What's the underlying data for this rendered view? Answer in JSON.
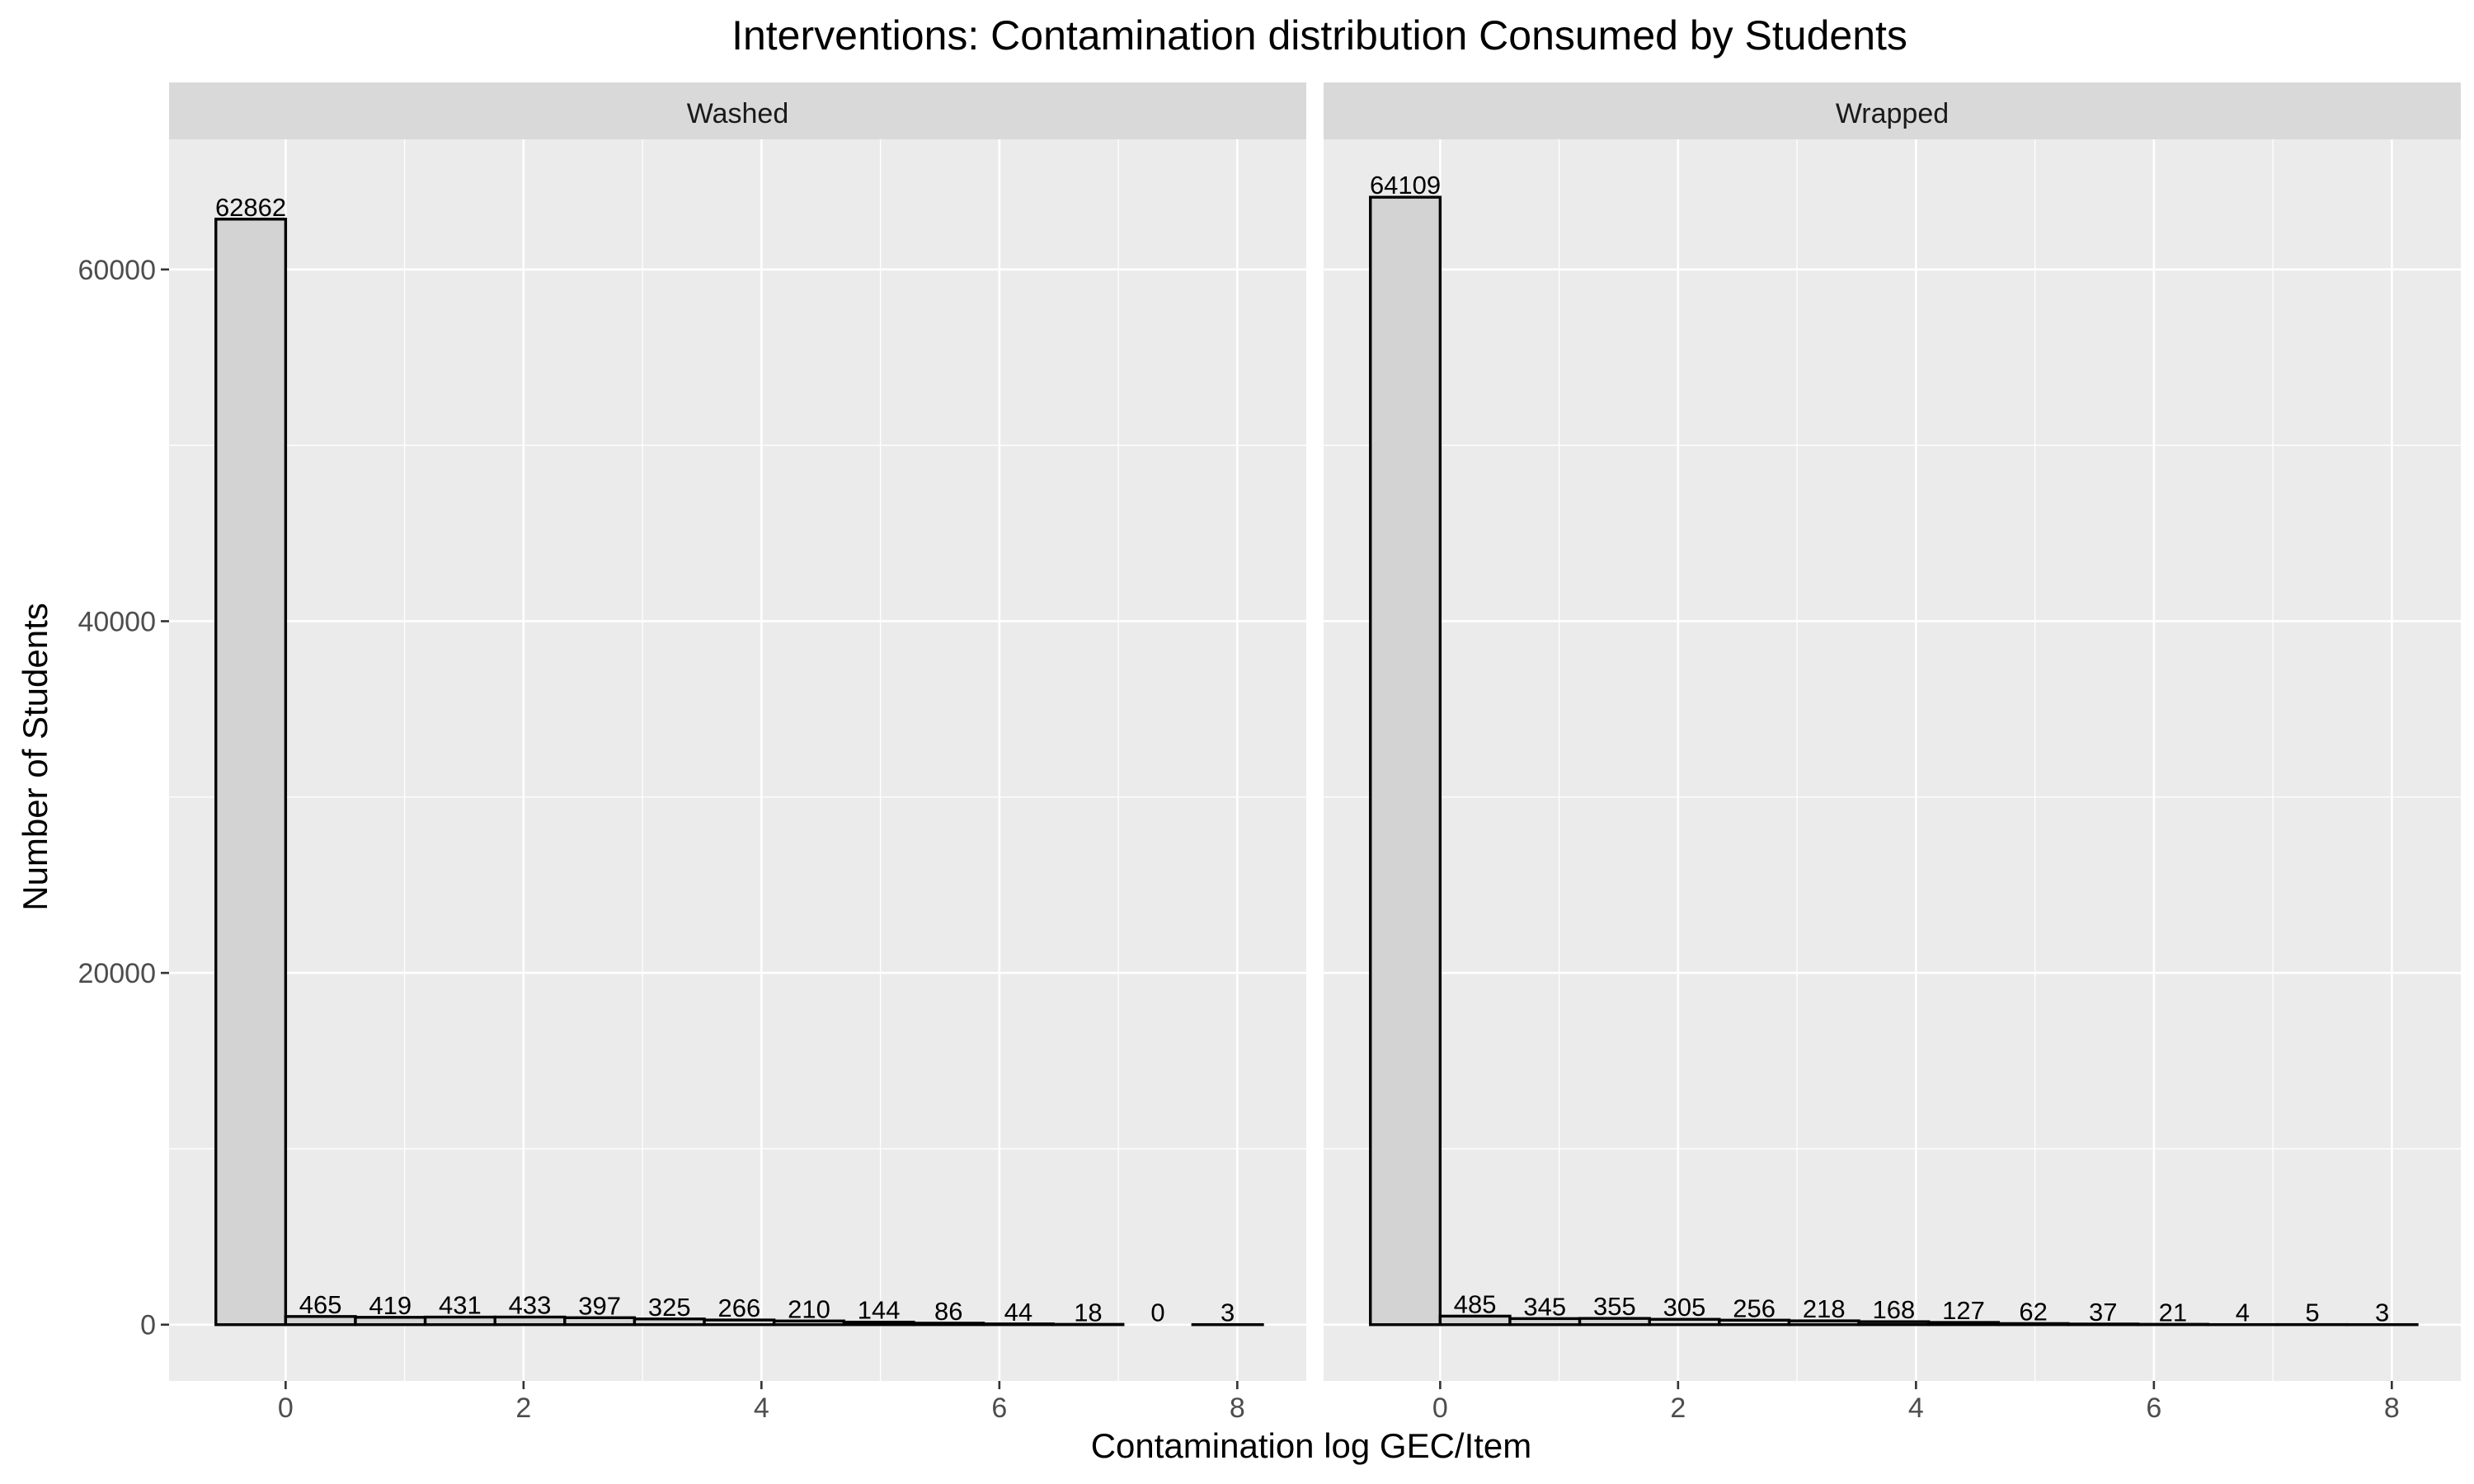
{
  "chart_data": {
    "type": "bar",
    "title": "Interventions: Contamination distribution Consumed by Students",
    "xlabel": "Contamination log GEC/Item",
    "ylabel": "Number of Students",
    "xlim": [
      -0.98,
      8.58
    ],
    "ylim": [
      -3200,
      67400
    ],
    "x_ticks": [
      0,
      2,
      4,
      6,
      8
    ],
    "y_ticks": [
      0,
      20000,
      40000,
      60000
    ],
    "grid": true,
    "bin_width": 0.5866,
    "panels": [
      {
        "name": "Washed",
        "bins": [
          {
            "x": -0.2933,
            "count": 62862
          },
          {
            "x": 0.2933,
            "count": 465
          },
          {
            "x": 0.8799,
            "count": 419
          },
          {
            "x": 1.4665,
            "count": 431
          },
          {
            "x": 2.0531,
            "count": 433
          },
          {
            "x": 2.6397,
            "count": 397
          },
          {
            "x": 3.2263,
            "count": 325
          },
          {
            "x": 3.8129,
            "count": 266
          },
          {
            "x": 4.3995,
            "count": 210
          },
          {
            "x": 4.9861,
            "count": 144
          },
          {
            "x": 5.5727,
            "count": 86
          },
          {
            "x": 6.1593,
            "count": 44
          },
          {
            "x": 6.7459,
            "count": 18
          },
          {
            "x": 7.3325,
            "count": 0
          },
          {
            "x": 7.9191,
            "count": 3
          }
        ]
      },
      {
        "name": "Wrapped",
        "bins": [
          {
            "x": -0.2933,
            "count": 64109
          },
          {
            "x": 0.2933,
            "count": 485
          },
          {
            "x": 0.8799,
            "count": 345
          },
          {
            "x": 1.4665,
            "count": 355
          },
          {
            "x": 2.0531,
            "count": 305
          },
          {
            "x": 2.6397,
            "count": 256
          },
          {
            "x": 3.2263,
            "count": 218
          },
          {
            "x": 3.8129,
            "count": 168
          },
          {
            "x": 4.3995,
            "count": 127
          },
          {
            "x": 4.9861,
            "count": 62
          },
          {
            "x": 5.5727,
            "count": 37
          },
          {
            "x": 6.1593,
            "count": 21
          },
          {
            "x": 6.7459,
            "count": 4
          },
          {
            "x": 7.3325,
            "count": 5
          },
          {
            "x": 7.9191,
            "count": 3
          }
        ]
      }
    ]
  }
}
